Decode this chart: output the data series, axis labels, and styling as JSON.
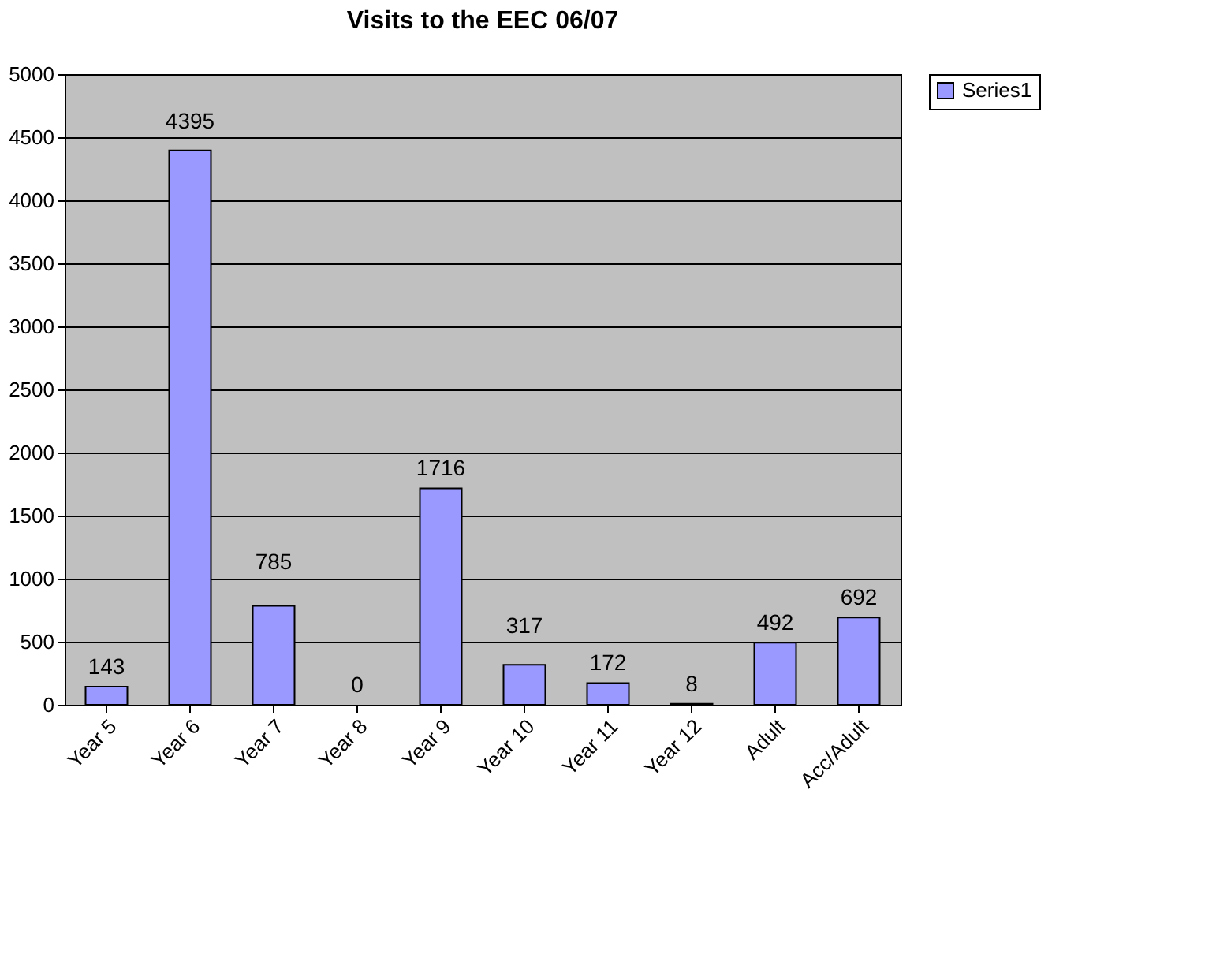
{
  "chart_data": {
    "type": "bar",
    "title": "Visits to the EEC 06/07",
    "categories": [
      "Year 5",
      "Year 6",
      "Year 7",
      "Year 8",
      "Year 9",
      "Year 10",
      "Year 11",
      "Year 12",
      "Adult",
      "Acc/Adult"
    ],
    "series": [
      {
        "name": "Series1",
        "color": "#9999ff",
        "values": [
          143,
          4395,
          785,
          0,
          1716,
          317,
          172,
          8,
          492,
          692
        ]
      }
    ],
    "ylim": [
      0,
      5000
    ],
    "yticks": [
      0,
      500,
      1000,
      1500,
      2000,
      2500,
      3000,
      3500,
      4000,
      4500,
      5000
    ],
    "grid": "y",
    "legend": "right",
    "data_labels": true
  }
}
